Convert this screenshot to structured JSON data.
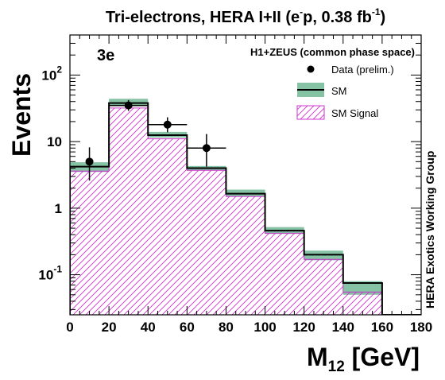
{
  "chart_data": {
    "type": "histogram",
    "title_main": "Tri-electrons, HERA I+II (e",
    "title_sup1": "-",
    "title_mid": "p, 0.38 fb",
    "title_sup2": "-1",
    "title_end": ")",
    "channel_label": "3e",
    "analysis_label": "H1+ZEUS (common phase space)",
    "side_label": "HERA Exotics Working Group",
    "ylabel": "Events",
    "xlabel_main": "M",
    "xlabel_sub": "12",
    "xlabel_unit": " [GeV]",
    "xlim": [
      0,
      180
    ],
    "ylim": [
      0.025,
      400
    ],
    "yscale": "log",
    "x_ticks": [
      0,
      20,
      40,
      60,
      80,
      100,
      120,
      140,
      160,
      180
    ],
    "x_tick_labels": [
      "0",
      "20",
      "40",
      "60",
      "80",
      "100",
      "120",
      "140",
      "160",
      "180"
    ],
    "y_ticks": [
      0.1,
      1,
      10,
      100
    ],
    "y_tick_labels": [
      {
        "base": "10",
        "exp": "-1"
      },
      {
        "base": "1",
        "exp": ""
      },
      {
        "base": "10",
        "exp": ""
      },
      {
        "base": "10",
        "exp": "2"
      }
    ],
    "bin_edges": [
      0,
      20,
      40,
      60,
      80,
      100,
      120,
      140,
      160,
      180
    ],
    "sm": [
      4.2,
      38,
      12.5,
      4.0,
      1.65,
      0.46,
      0.2,
      0.075,
      0.0
    ],
    "sm_uncertainty_low": [
      3.5,
      34,
      11.5,
      3.7,
      1.5,
      0.41,
      0.165,
      0.05,
      0.0
    ],
    "sm_uncertainty_high": [
      4.9,
      44,
      14.0,
      4.3,
      1.9,
      0.52,
      0.23,
      0.08,
      0.0
    ],
    "sm_signal": [
      3.6,
      32,
      11.0,
      3.7,
      1.5,
      0.42,
      0.17,
      0.055,
      0.0
    ],
    "data": {
      "x": [
        10,
        30,
        50,
        70
      ],
      "y": [
        5,
        35,
        18,
        8
      ],
      "x_err": [
        0,
        10,
        10,
        10
      ],
      "y_err_low": [
        2.4,
        6,
        4.2,
        3.8
      ],
      "y_err_high": [
        3.2,
        7,
        5.2,
        5.0
      ]
    },
    "legend": [
      {
        "kind": "marker",
        "label": "Data (prelim.)"
      },
      {
        "kind": "band",
        "label": "SM"
      },
      {
        "kind": "hatch",
        "label": "SM Signal"
      }
    ],
    "legend_position": "top-right",
    "colors": {
      "sm_band": "#86c3a4",
      "sm_line": "#000000",
      "signal_hatch": "#cc33cc",
      "data": "#000000"
    }
  }
}
